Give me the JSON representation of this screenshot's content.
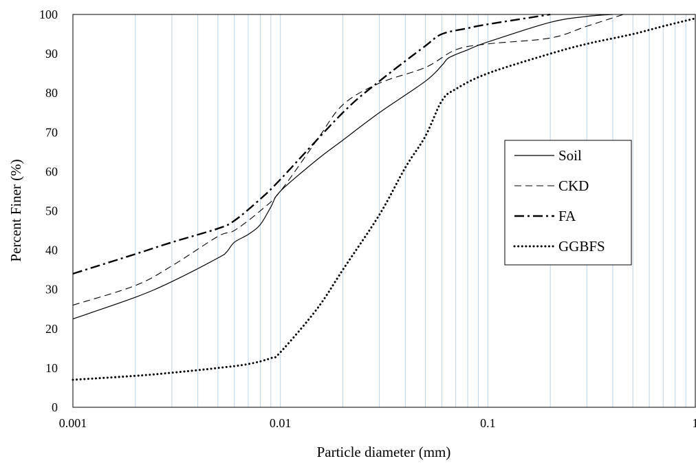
{
  "chart_data": {
    "type": "line",
    "title": "",
    "xlabel": "Particle diameter (mm)",
    "ylabel": "Percent Finer (%)",
    "x_scale": "log",
    "xlim": [
      0.001,
      1
    ],
    "ylim": [
      0,
      100
    ],
    "x_tick_labels": [
      "0.001",
      "0.01",
      "0.1",
      "1"
    ],
    "y_tick_labels": [
      "0",
      "10",
      "20",
      "30",
      "40",
      "50",
      "60",
      "70",
      "80",
      "90",
      "100"
    ],
    "grid": "vertical minor and major lines on log x-axis",
    "legend_position": "right-center",
    "series": [
      {
        "name": "Soil",
        "style": "solid",
        "points": [
          [
            0.001,
            22.5
          ],
          [
            0.002,
            28
          ],
          [
            0.003,
            32
          ],
          [
            0.005,
            38
          ],
          [
            0.0055,
            39.5
          ],
          [
            0.006,
            42
          ],
          [
            0.007,
            44
          ],
          [
            0.008,
            46.5
          ],
          [
            0.009,
            51
          ],
          [
            0.01,
            55
          ],
          [
            0.015,
            63
          ],
          [
            0.02,
            68
          ],
          [
            0.03,
            75
          ],
          [
            0.05,
            83
          ],
          [
            0.06,
            87
          ],
          [
            0.065,
            89
          ],
          [
            0.08,
            91
          ],
          [
            0.1,
            93
          ],
          [
            0.2,
            98
          ],
          [
            0.3,
            99.5
          ],
          [
            0.4,
            100
          ]
        ]
      },
      {
        "name": "CKD",
        "style": "dashed",
        "points": [
          [
            0.001,
            26
          ],
          [
            0.002,
            31
          ],
          [
            0.003,
            36
          ],
          [
            0.005,
            43.5
          ],
          [
            0.006,
            45
          ],
          [
            0.008,
            50
          ],
          [
            0.01,
            55
          ],
          [
            0.015,
            68
          ],
          [
            0.02,
            77
          ],
          [
            0.03,
            82.5
          ],
          [
            0.05,
            86.5
          ],
          [
            0.07,
            91
          ],
          [
            0.1,
            92.5
          ],
          [
            0.2,
            94
          ],
          [
            0.3,
            97
          ],
          [
            0.45,
            100
          ]
        ]
      },
      {
        "name": "FA",
        "style": "dash-dot",
        "points": [
          [
            0.001,
            34
          ],
          [
            0.002,
            39
          ],
          [
            0.003,
            42
          ],
          [
            0.005,
            45.5
          ],
          [
            0.006,
            47.5
          ],
          [
            0.008,
            53
          ],
          [
            0.01,
            58
          ],
          [
            0.02,
            75
          ],
          [
            0.03,
            83
          ],
          [
            0.05,
            92
          ],
          [
            0.06,
            95
          ],
          [
            0.08,
            96.5
          ],
          [
            0.1,
            97.5
          ],
          [
            0.2,
            100
          ]
        ]
      },
      {
        "name": "GGBFS",
        "style": "dotted",
        "points": [
          [
            0.001,
            7
          ],
          [
            0.002,
            8
          ],
          [
            0.003,
            8.8
          ],
          [
            0.005,
            10
          ],
          [
            0.007,
            11
          ],
          [
            0.009,
            12.5
          ],
          [
            0.01,
            14
          ],
          [
            0.015,
            25
          ],
          [
            0.02,
            35
          ],
          [
            0.03,
            49
          ],
          [
            0.04,
            61
          ],
          [
            0.05,
            69
          ],
          [
            0.06,
            78
          ],
          [
            0.07,
            81
          ],
          [
            0.1,
            85
          ],
          [
            0.2,
            90
          ],
          [
            0.3,
            92.5
          ],
          [
            0.5,
            95
          ],
          [
            0.7,
            97
          ],
          [
            1.0,
            99
          ]
        ]
      }
    ]
  }
}
